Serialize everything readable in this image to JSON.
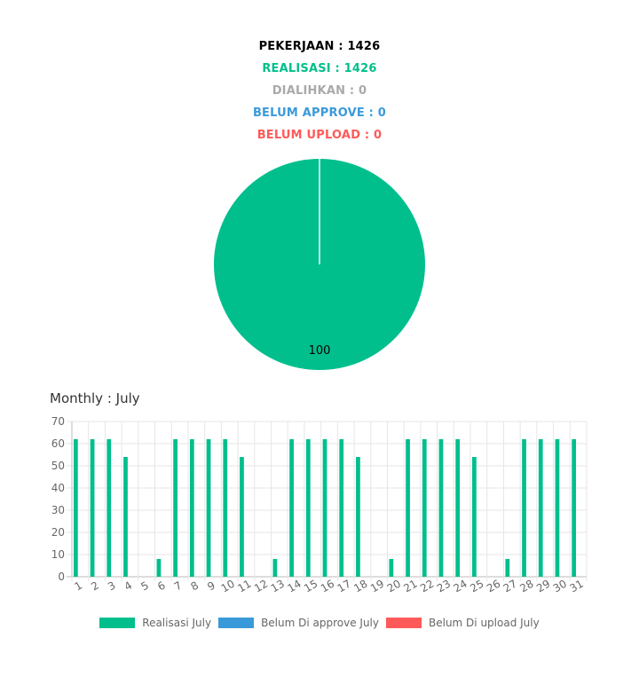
{
  "summary": {
    "pekerjaan": "PEKERJAAN : 1426",
    "realisasi": "REALISASI : 1426",
    "dialihkan": "DIALIHKAN : 0",
    "belum_approve": "BELUM APPROVE : 0",
    "belum_upload": "BELUM UPLOAD : 0"
  },
  "colors": {
    "pekerjaan": "#000000",
    "realisasi": "#00bf8c",
    "dialihkan": "#a9a9a9",
    "belum_approve": "#3a9ad9",
    "belum_upload": "#ff5a5a"
  },
  "monthly_title": "Monthly : July",
  "chart_data": [
    {
      "type": "pie",
      "slices": [
        {
          "name": "Realisasi",
          "value": 100,
          "label": "100",
          "color": "#00bf8c"
        },
        {
          "name": "Belum Approve",
          "value": 0,
          "color": "#3a9ad9"
        },
        {
          "name": "Belum Upload",
          "value": 0,
          "color": "#ff5a5a"
        }
      ]
    },
    {
      "type": "bar",
      "categories": [
        "1",
        "2",
        "3",
        "4",
        "5",
        "6",
        "7",
        "8",
        "9",
        "10",
        "11",
        "12",
        "13",
        "14",
        "15",
        "16",
        "17",
        "18",
        "19",
        "20",
        "21",
        "22",
        "23",
        "24",
        "25",
        "26",
        "27",
        "28",
        "29",
        "30",
        "31"
      ],
      "series": [
        {
          "name": "Realisasi July",
          "color": "#00bf8c",
          "values": [
            62,
            62,
            62,
            54,
            0,
            8,
            62,
            62,
            62,
            62,
            54,
            0,
            8,
            62,
            62,
            62,
            62,
            54,
            0,
            8,
            62,
            62,
            62,
            62,
            54,
            0,
            8,
            62,
            62,
            62,
            62
          ]
        },
        {
          "name": "Belum Di approve July",
          "color": "#3a9ad9",
          "values": [
            0,
            0,
            0,
            0,
            0,
            0,
            0,
            0,
            0,
            0,
            0,
            0,
            0,
            0,
            0,
            0,
            0,
            0,
            0,
            0,
            0,
            0,
            0,
            0,
            0,
            0,
            0,
            0,
            0,
            0,
            0
          ]
        },
        {
          "name": "Belum Di upload July",
          "color": "#ff5a5a",
          "values": [
            0,
            0,
            0,
            0,
            0,
            0,
            0,
            0,
            0,
            0,
            0,
            0,
            0,
            0,
            0,
            0,
            0,
            0,
            0,
            0,
            0,
            0,
            0,
            0,
            0,
            0,
            0,
            0,
            0,
            0,
            0
          ]
        }
      ],
      "yticks": [
        "0",
        "10",
        "20",
        "30",
        "40",
        "50",
        "60",
        "70"
      ],
      "ylim": [
        0,
        70
      ],
      "grid": true,
      "legend_position": "bottom"
    }
  ]
}
